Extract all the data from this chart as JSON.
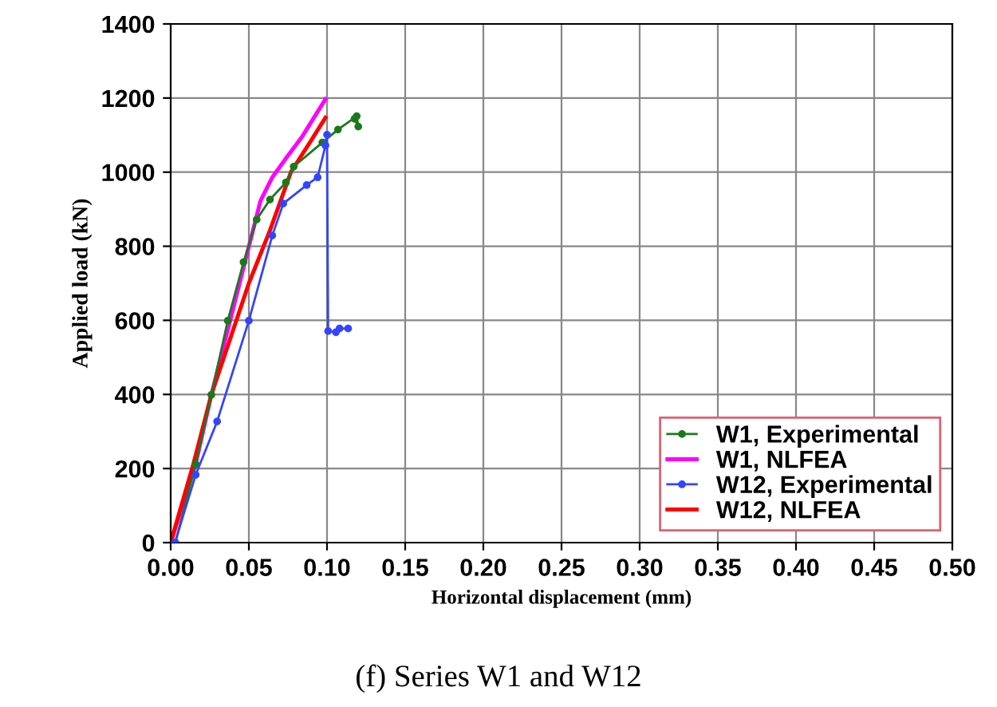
{
  "chart_data": {
    "type": "line",
    "xlabel": "Horizontal displacement (mm)",
    "ylabel": "Applied load (kN)",
    "annotations": [
      "(f) Series W1 and W12"
    ],
    "xlim": [
      0,
      0.5
    ],
    "xticks": [
      {
        "value": 0,
        "label": "0.00"
      },
      {
        "value": 0.05,
        "label": "0.05"
      },
      {
        "value": 0.1,
        "label": "0.10"
      },
      {
        "value": 0.15,
        "label": "0.15"
      },
      {
        "value": 0.2,
        "label": "0.20"
      },
      {
        "value": 0.25,
        "label": "0.25"
      },
      {
        "value": 0.3,
        "label": "0.30"
      },
      {
        "value": 0.35,
        "label": "0.35"
      },
      {
        "value": 0.4,
        "label": "0.40"
      },
      {
        "value": 0.45,
        "label": "0.45"
      },
      {
        "value": 0.5,
        "label": "0.50"
      }
    ],
    "ylim": [
      0,
      1400
    ],
    "yticks": [
      0,
      200,
      400,
      600,
      800,
      1000,
      1200,
      1400
    ],
    "grid": true,
    "legend": "bottom right",
    "series": [
      {
        "name": "W1, Experimental",
        "color": "#1a7a1a",
        "marker": "circle",
        "x": [
          0.003,
          0.016,
          0.026,
          0.0365,
          0.0466,
          0.055,
          0.0635,
          0.0737,
          0.0787,
          0.097,
          0.107,
          0.119,
          0.12,
          0.1176
        ],
        "values": [
          0,
          212,
          399,
          599,
          757,
          872,
          926,
          972,
          1015,
          1080,
          1115,
          1151,
          1123,
          1144
        ]
      },
      {
        "name": "W1, NLFEA",
        "color": "#ff00ff",
        "marker": "none",
        "x": [
          0,
          0.016,
          0.026,
          0.05,
          0.0574,
          0.065,
          0.0737,
          0.0838,
          0.099
        ],
        "values": [
          0,
          212,
          399,
          799,
          922,
          986,
          1037,
          1094,
          1197
        ]
      },
      {
        "name": "W12, Experimental",
        "color": "#3344ff",
        "marker": "circle",
        "x": [
          0.0027,
          0.016,
          0.0297,
          0.05,
          0.065,
          0.072,
          0.087,
          0.094,
          0.099,
          0.1,
          0.1007,
          0.1057,
          0.108,
          0.1135
        ],
        "values": [
          0,
          183,
          327,
          599,
          829,
          915,
          965,
          986,
          1072,
          1101,
          571,
          568,
          578,
          578
        ]
      },
      {
        "name": "W12, NLFEA",
        "color": "#ff0000",
        "marker": "none",
        "x": [
          0,
          0.0145,
          0.026,
          0.05,
          0.0635,
          0.077,
          0.089,
          0.099
        ],
        "values": [
          0,
          212,
          399,
          700,
          843,
          1001,
          1080,
          1147
        ]
      }
    ]
  }
}
